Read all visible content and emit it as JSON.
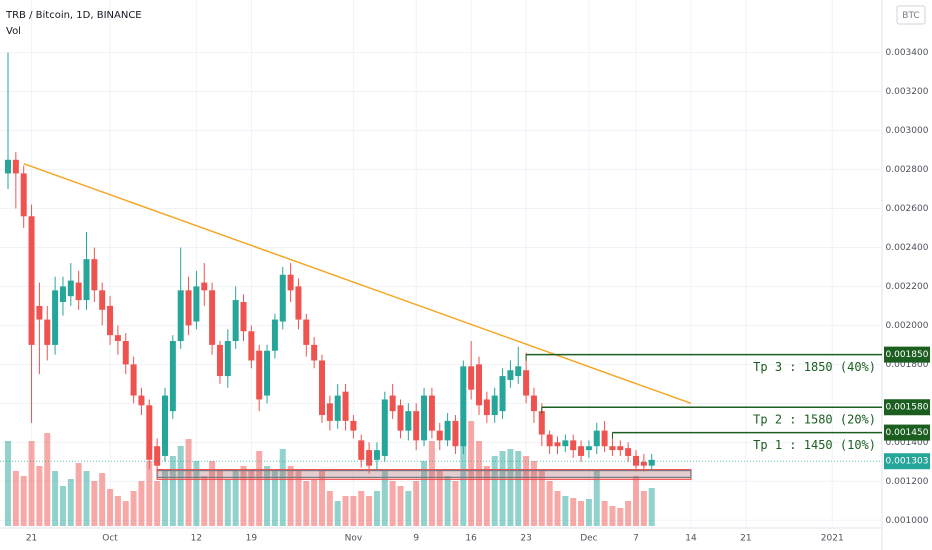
{
  "chart_data": {
    "type": "candlestick",
    "title": "TRB / Bitcoin, 1D, BINANCE",
    "volume_label": "Vol",
    "currency": "BTC",
    "up_color": "#26a69a",
    "down_color": "#ef5350",
    "ylim": [
      0.00095,
      0.00367
    ],
    "yticks": [
      {
        "value": 0.001,
        "label": "0.001000"
      },
      {
        "value": 0.0012,
        "label": "0.001200"
      },
      {
        "value": 0.0014,
        "label": "0.001400"
      },
      {
        "value": 0.0016,
        "label": "0.001600"
      },
      {
        "value": 0.0018,
        "label": "0.001800"
      },
      {
        "value": 0.002,
        "label": "0.002000"
      },
      {
        "value": 0.0022,
        "label": "0.002200"
      },
      {
        "value": 0.0024,
        "label": "0.002400"
      },
      {
        "value": 0.0026,
        "label": "0.002600"
      },
      {
        "value": 0.0028,
        "label": "0.002800"
      },
      {
        "value": 0.003,
        "label": "0.003000"
      },
      {
        "value": 0.0032,
        "label": "0.003200"
      },
      {
        "value": 0.0034,
        "label": "0.003400"
      }
    ],
    "xticks": [
      {
        "value": "Sep 21",
        "label": "21"
      },
      {
        "value": "Oct 1",
        "label": "Oct"
      },
      {
        "value": "Oct 12",
        "label": "12"
      },
      {
        "value": "Oct 19",
        "label": "19"
      },
      {
        "value": "Nov 1",
        "label": "Nov"
      },
      {
        "value": "Nov 9",
        "label": "9"
      },
      {
        "value": "Nov 16",
        "label": "16"
      },
      {
        "value": "Nov 23",
        "label": "23"
      },
      {
        "value": "Dec 1",
        "label": "Dec"
      },
      {
        "value": "Dec 7",
        "label": "7"
      },
      {
        "value": "Dec 14",
        "label": "14"
      },
      {
        "value": "Dec 21",
        "label": "21"
      },
      {
        "value": "Jan 1",
        "label": "2021"
      }
    ],
    "candles": [
      {
        "date": "Sep 18",
        "open": 0.00278,
        "high": 0.0034,
        "low": 0.0027,
        "close": 0.00285,
        "volume": 85
      },
      {
        "date": "Sep 19",
        "open": 0.00285,
        "high": 0.00289,
        "low": 0.0026,
        "close": 0.00278,
        "volume": 55
      },
      {
        "date": "Sep 20",
        "open": 0.00278,
        "high": 0.00282,
        "low": 0.0025,
        "close": 0.00256,
        "volume": 50
      },
      {
        "date": "Sep 21",
        "open": 0.00256,
        "high": 0.00262,
        "low": 0.0015,
        "close": 0.0019,
        "volume": 85
      },
      {
        "date": "Sep 22",
        "open": 0.0021,
        "high": 0.00222,
        "low": 0.00175,
        "close": 0.00203,
        "volume": 60
      },
      {
        "date": "Sep 23",
        "open": 0.00203,
        "high": 0.0021,
        "low": 0.00182,
        "close": 0.0019,
        "volume": 93
      },
      {
        "date": "Sep 24",
        "open": 0.0019,
        "high": 0.00225,
        "low": 0.00185,
        "close": 0.00218,
        "volume": 55
      },
      {
        "date": "Sep 25",
        "open": 0.00212,
        "high": 0.00225,
        "low": 0.00205,
        "close": 0.0022,
        "volume": 40
      },
      {
        "date": "Sep 26",
        "open": 0.00215,
        "high": 0.00232,
        "low": 0.0021,
        "close": 0.00223,
        "volume": 47
      },
      {
        "date": "Sep 27",
        "open": 0.00222,
        "high": 0.00228,
        "low": 0.00208,
        "close": 0.00213,
        "volume": 63
      },
      {
        "date": "Sep 28",
        "open": 0.00213,
        "high": 0.00248,
        "low": 0.00208,
        "close": 0.00234,
        "volume": 55
      },
      {
        "date": "Sep 29",
        "open": 0.00234,
        "high": 0.0024,
        "low": 0.00212,
        "close": 0.00218,
        "volume": 45
      },
      {
        "date": "Sep 30",
        "open": 0.00218,
        "high": 0.00222,
        "low": 0.002,
        "close": 0.00208,
        "volume": 53
      },
      {
        "date": "Oct 1",
        "open": 0.0021,
        "high": 0.00215,
        "low": 0.0019,
        "close": 0.00195,
        "volume": 37
      },
      {
        "date": "Oct 2",
        "open": 0.00195,
        "high": 0.002,
        "low": 0.00185,
        "close": 0.00192,
        "volume": 30
      },
      {
        "date": "Oct 3",
        "open": 0.00192,
        "high": 0.00196,
        "low": 0.00175,
        "close": 0.0018,
        "volume": 25
      },
      {
        "date": "Oct 4",
        "open": 0.0018,
        "high": 0.00184,
        "low": 0.0016,
        "close": 0.00164,
        "volume": 35
      },
      {
        "date": "Oct 5",
        "open": 0.00164,
        "high": 0.00168,
        "low": 0.00154,
        "close": 0.00159,
        "volume": 45
      },
      {
        "date": "Oct 6",
        "open": 0.00159,
        "high": 0.00162,
        "low": 0.00126,
        "close": 0.00131,
        "volume": 65
      },
      {
        "date": "Oct 7",
        "open": 0.00138,
        "high": 0.00142,
        "low": 0.00124,
        "close": 0.00128,
        "volume": 45
      },
      {
        "date": "Oct 8",
        "open": 0.00133,
        "high": 0.00168,
        "low": 0.0013,
        "close": 0.00164,
        "volume": 55
      },
      {
        "date": "Oct 9",
        "open": 0.00156,
        "high": 0.00195,
        "low": 0.00152,
        "close": 0.00192,
        "volume": 70
      },
      {
        "date": "Oct 10",
        "open": 0.00192,
        "high": 0.0024,
        "low": 0.00188,
        "close": 0.00218,
        "volume": 80
      },
      {
        "date": "Oct 11",
        "open": 0.00218,
        "high": 0.00225,
        "low": 0.00195,
        "close": 0.002,
        "volume": 87
      },
      {
        "date": "Oct 12",
        "open": 0.00202,
        "high": 0.00228,
        "low": 0.00198,
        "close": 0.0022,
        "volume": 65
      },
      {
        "date": "Oct 13",
        "open": 0.00222,
        "high": 0.00232,
        "low": 0.0021,
        "close": 0.00218,
        "volume": 50
      },
      {
        "date": "Oct 14",
        "open": 0.00218,
        "high": 0.00222,
        "low": 0.00185,
        "close": 0.0019,
        "volume": 65
      },
      {
        "date": "Oct 15",
        "open": 0.0019,
        "high": 0.00192,
        "low": 0.0017,
        "close": 0.00174,
        "volume": 55
      },
      {
        "date": "Oct 16",
        "open": 0.00174,
        "high": 0.00198,
        "low": 0.00168,
        "close": 0.00192,
        "volume": 47
      },
      {
        "date": "Oct 17",
        "open": 0.00192,
        "high": 0.0022,
        "low": 0.00188,
        "close": 0.00213,
        "volume": 55
      },
      {
        "date": "Oct 18",
        "open": 0.00212,
        "high": 0.00216,
        "low": 0.00192,
        "close": 0.00197,
        "volume": 60
      },
      {
        "date": "Oct 19",
        "open": 0.00197,
        "high": 0.002,
        "low": 0.00178,
        "close": 0.00182,
        "volume": 55
      },
      {
        "date": "Oct 20",
        "open": 0.00187,
        "high": 0.0019,
        "low": 0.00156,
        "close": 0.00162,
        "volume": 75
      },
      {
        "date": "Oct 21",
        "open": 0.00164,
        "high": 0.0019,
        "low": 0.0016,
        "close": 0.00187,
        "volume": 60
      },
      {
        "date": "Oct 22",
        "open": 0.00187,
        "high": 0.00206,
        "low": 0.00183,
        "close": 0.00203,
        "volume": 55
      },
      {
        "date": "Oct 23",
        "open": 0.00202,
        "high": 0.0023,
        "low": 0.00198,
        "close": 0.00226,
        "volume": 77
      },
      {
        "date": "Oct 24",
        "open": 0.00226,
        "high": 0.00232,
        "low": 0.00212,
        "close": 0.00218,
        "volume": 60
      },
      {
        "date": "Oct 25",
        "open": 0.0022,
        "high": 0.00224,
        "low": 0.00198,
        "close": 0.00203,
        "volume": 55
      },
      {
        "date": "Oct 26",
        "open": 0.00203,
        "high": 0.00206,
        "low": 0.00184,
        "close": 0.0019,
        "volume": 45
      },
      {
        "date": "Oct 27",
        "open": 0.0019,
        "high": 0.00194,
        "low": 0.00178,
        "close": 0.00182,
        "volume": 47
      },
      {
        "date": "Oct 28",
        "open": 0.00182,
        "high": 0.00185,
        "low": 0.0015,
        "close": 0.00154,
        "volume": 55
      },
      {
        "date": "Oct 29",
        "open": 0.0016,
        "high": 0.00164,
        "low": 0.00146,
        "close": 0.00151,
        "volume": 35
      },
      {
        "date": "Oct 30",
        "open": 0.00151,
        "high": 0.0017,
        "low": 0.00147,
        "close": 0.00164,
        "volume": 25
      },
      {
        "date": "Oct 31",
        "open": 0.00166,
        "high": 0.0017,
        "low": 0.00146,
        "close": 0.00151,
        "volume": 30
      },
      {
        "date": "Nov 1",
        "open": 0.00151,
        "high": 0.00154,
        "low": 0.00142,
        "close": 0.00146,
        "volume": 30
      },
      {
        "date": "Nov 2",
        "open": 0.00141,
        "high": 0.00144,
        "low": 0.00127,
        "close": 0.00131,
        "volume": 35
      },
      {
        "date": "Nov 3",
        "open": 0.00136,
        "high": 0.0014,
        "low": 0.00124,
        "close": 0.00128,
        "volume": 30
      },
      {
        "date": "Nov 4",
        "open": 0.00131,
        "high": 0.0014,
        "low": 0.00126,
        "close": 0.00136,
        "volume": 35
      },
      {
        "date": "Nov 5",
        "open": 0.00133,
        "high": 0.00166,
        "low": 0.0013,
        "close": 0.00162,
        "volume": 55
      },
      {
        "date": "Nov 6",
        "open": 0.00164,
        "high": 0.0017,
        "low": 0.00152,
        "close": 0.00156,
        "volume": 45
      },
      {
        "date": "Nov 7",
        "open": 0.00159,
        "high": 0.00162,
        "low": 0.00142,
        "close": 0.00146,
        "volume": 40
      },
      {
        "date": "Nov 8",
        "open": 0.00146,
        "high": 0.0016,
        "low": 0.00141,
        "close": 0.00156,
        "volume": 35
      },
      {
        "date": "Nov 9",
        "open": 0.00156,
        "high": 0.0016,
        "low": 0.00136,
        "close": 0.00141,
        "volume": 45
      },
      {
        "date": "Nov 10",
        "open": 0.00141,
        "high": 0.00168,
        "low": 0.00138,
        "close": 0.00164,
        "volume": 65
      },
      {
        "date": "Nov 11",
        "open": 0.00164,
        "high": 0.00168,
        "low": 0.00142,
        "close": 0.00146,
        "volume": 85
      },
      {
        "date": "Nov 12",
        "open": 0.00146,
        "high": 0.0015,
        "low": 0.00136,
        "close": 0.00141,
        "volume": 55
      },
      {
        "date": "Nov 13",
        "open": 0.00141,
        "high": 0.00155,
        "low": 0.00138,
        "close": 0.00151,
        "volume": 50
      },
      {
        "date": "Nov 14",
        "open": 0.00151,
        "high": 0.00154,
        "low": 0.00134,
        "close": 0.00138,
        "volume": 45
      },
      {
        "date": "Nov 15",
        "open": 0.00138,
        "high": 0.00182,
        "low": 0.00134,
        "close": 0.00179,
        "volume": 85
      },
      {
        "date": "Nov 16",
        "open": 0.00179,
        "high": 0.00192,
        "low": 0.00162,
        "close": 0.00167,
        "volume": 105
      },
      {
        "date": "Nov 17",
        "open": 0.0018,
        "high": 0.00184,
        "low": 0.00154,
        "close": 0.00159,
        "volume": 85
      },
      {
        "date": "Nov 18",
        "open": 0.00162,
        "high": 0.00166,
        "low": 0.0015,
        "close": 0.00154,
        "volume": 60
      },
      {
        "date": "Nov 19",
        "open": 0.00154,
        "high": 0.00168,
        "low": 0.0015,
        "close": 0.00164,
        "volume": 70
      },
      {
        "date": "Nov 20",
        "open": 0.00156,
        "high": 0.00178,
        "low": 0.00152,
        "close": 0.00174,
        "volume": 75
      },
      {
        "date": "Nov 21",
        "open": 0.00172,
        "high": 0.00182,
        "low": 0.00168,
        "close": 0.00177,
        "volume": 77
      },
      {
        "date": "Nov 22",
        "open": 0.00174,
        "high": 0.00189,
        "low": 0.0017,
        "close": 0.00179,
        "volume": 75
      },
      {
        "date": "Nov 23",
        "open": 0.00177,
        "high": 0.00186,
        "low": 0.0016,
        "close": 0.00164,
        "volume": 70
      },
      {
        "date": "Nov 24",
        "open": 0.00164,
        "high": 0.00168,
        "low": 0.0015,
        "close": 0.00156,
        "volume": 65
      },
      {
        "date": "Nov 25",
        "open": 0.00156,
        "high": 0.0016,
        "low": 0.00138,
        "close": 0.00144,
        "volume": 55
      },
      {
        "date": "Nov 26",
        "open": 0.00144,
        "high": 0.00146,
        "low": 0.00134,
        "close": 0.00138,
        "volume": 45
      },
      {
        "date": "Nov 27",
        "open": 0.0014,
        "high": 0.00143,
        "low": 0.00134,
        "close": 0.00138,
        "volume": 35
      },
      {
        "date": "Nov 28",
        "open": 0.00138,
        "high": 0.00144,
        "low": 0.00135,
        "close": 0.00141,
        "volume": 30
      },
      {
        "date": "Nov 29",
        "open": 0.00141,
        "high": 0.00144,
        "low": 0.00132,
        "close": 0.00136,
        "volume": 28
      },
      {
        "date": "Nov 30",
        "open": 0.00138,
        "high": 0.00141,
        "low": 0.0013,
        "close": 0.00133,
        "volume": 25
      },
      {
        "date": "Dec 1",
        "open": 0.00136,
        "high": 0.00141,
        "low": 0.00132,
        "close": 0.00138,
        "volume": 27
      },
      {
        "date": "Dec 2",
        "open": 0.00138,
        "high": 0.0015,
        "low": 0.00134,
        "close": 0.00146,
        "volume": 55
      },
      {
        "date": "Dec 3",
        "open": 0.00146,
        "high": 0.00151,
        "low": 0.00135,
        "close": 0.00138,
        "volume": 25
      },
      {
        "date": "Dec 4",
        "open": 0.00138,
        "high": 0.00144,
        "low": 0.00133,
        "close": 0.00136,
        "volume": 20
      },
      {
        "date": "Dec 5",
        "open": 0.00138,
        "high": 0.00141,
        "low": 0.00133,
        "close": 0.00136,
        "volume": 18
      },
      {
        "date": "Dec 6",
        "open": 0.00137,
        "high": 0.0014,
        "low": 0.0013,
        "close": 0.00133,
        "volume": 25
      },
      {
        "date": "Dec 7",
        "open": 0.00133,
        "high": 0.00136,
        "low": 0.00125,
        "close": 0.00128,
        "volume": 50
      },
      {
        "date": "Dec 8",
        "open": 0.0013,
        "high": 0.00134,
        "low": 0.00125,
        "close": 0.00128,
        "volume": 35
      },
      {
        "date": "Dec 9",
        "open": 0.00128,
        "high": 0.00134,
        "low": 0.00126,
        "close": 0.00131,
        "volume": 38
      }
    ],
    "trendline": {
      "from": {
        "date": "Sep 20",
        "price": 0.00283
      },
      "to": {
        "date": "Dec 14",
        "price": 0.0016
      },
      "color": "#f5a623"
    },
    "zones": [
      {
        "from": "Oct 7",
        "to": "Dec 14",
        "low": 0.00121,
        "high": 0.00126,
        "color": "#ef5350"
      },
      {
        "from": "Oct 7",
        "to": "Dec 14",
        "low": 0.00122,
        "high": 0.001255,
        "color": "#787b86"
      }
    ],
    "targets": [
      {
        "from": "Nov 23",
        "price": {
          "value": 0.00185,
          "label": "0.001850"
        },
        "text": "Tp 3 : 1850 (40%)",
        "color": "#1b5e20"
      },
      {
        "from": "Nov 25",
        "price": {
          "value": 0.00158,
          "label": "0.001580"
        },
        "text": "Tp 2 : 1580 (20%)",
        "color": "#1b5e20"
      },
      {
        "from": "Dec 4",
        "price": {
          "value": 0.00145,
          "label": "0.001450"
        },
        "text": "Tp 1 : 1450 (10%)",
        "color": "#1b5e20"
      }
    ],
    "last_price": {
      "value": 0.001303,
      "label": "0.001303",
      "color": "#26a69a"
    }
  }
}
